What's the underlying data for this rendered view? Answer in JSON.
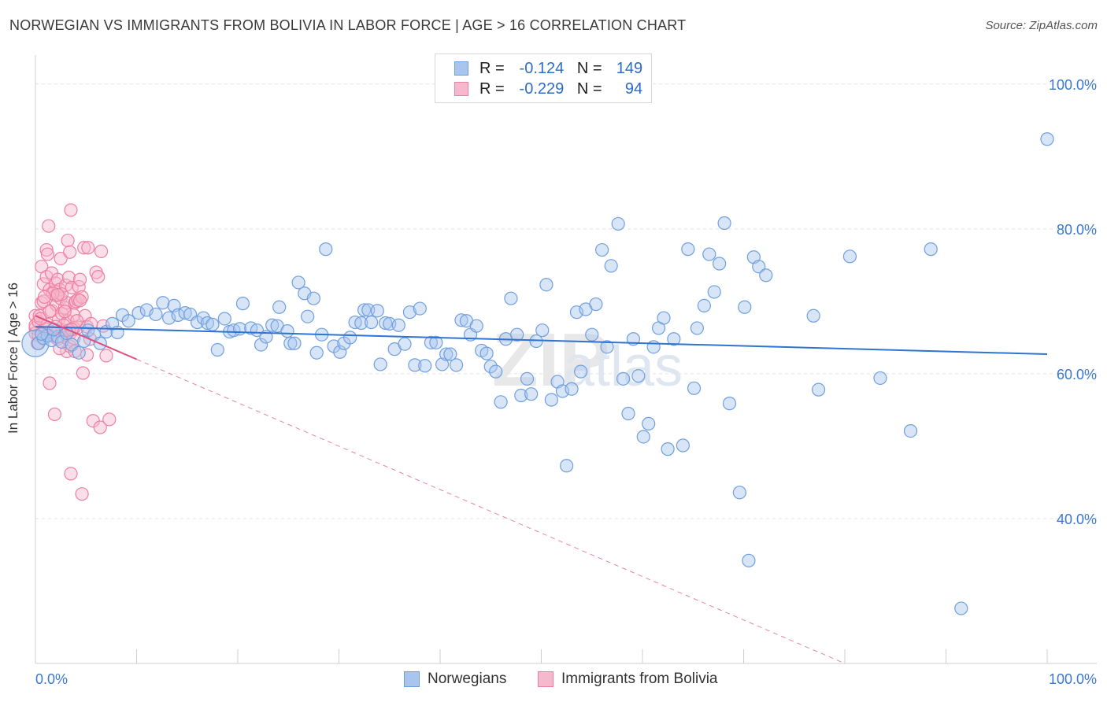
{
  "header": {
    "title": "NORWEGIAN VS IMMIGRANTS FROM BOLIVIA IN LABOR FORCE | AGE > 16 CORRELATION CHART",
    "source": "Source: ZipAtlas.com"
  },
  "legend": {
    "rows": [
      {
        "r_label": "R =",
        "r_value": "-0.124",
        "n_label": "N =",
        "n_value": "149"
      },
      {
        "r_label": "R =",
        "r_value": "-0.229",
        "n_label": "N =",
        "n_value": "94"
      }
    ],
    "bottom": [
      {
        "name": "Norwegians"
      },
      {
        "name": "Immigrants from Bolivia"
      }
    ]
  },
  "colors": {
    "blue_fill": "#a9c5ee",
    "blue_stroke": "#6f9fe0",
    "blue_line": "#2f74d0",
    "pink_fill": "#f6b8cc",
    "pink_stroke": "#ee7fa3",
    "pink_line": "#e04e7e",
    "grid": "#e3e3e3",
    "axis_text": "#3a78d1"
  },
  "chart_data": {
    "type": "scatter",
    "title": "NORWEGIAN VS IMMIGRANTS FROM BOLIVIA IN LABOR FORCE | AGE > 16 CORRELATION CHART",
    "xlabel": "",
    "ylabel": "In Labor Force | Age > 16",
    "xlim": [
      0,
      100
    ],
    "ylim": [
      20,
      104
    ],
    "x_tick_labels": [
      "0.0%",
      "100.0%"
    ],
    "y_ticks": [
      40,
      60,
      80,
      100
    ],
    "y_tick_labels": [
      "40.0%",
      "60.0%",
      "80.0%",
      "100.0%"
    ],
    "grid": true,
    "legend_position": "top-center",
    "series": [
      {
        "name": "Norwegians",
        "R": -0.124,
        "N": 149,
        "trend": {
          "x": [
            0,
            100
          ],
          "y": [
            66.5,
            62.7
          ],
          "style": "solid"
        },
        "points": [
          [
            0.3,
            64.2
          ],
          [
            0.8,
            64.9
          ],
          [
            1.2,
            65.3
          ],
          [
            1.6,
            64.6
          ],
          [
            2.2,
            65.1
          ],
          [
            2.6,
            64.4
          ],
          [
            3.1,
            65.6
          ],
          [
            3.6,
            64.0
          ],
          [
            4.3,
            62.9
          ],
          [
            4.8,
            64.5
          ],
          [
            5.2,
            66.0
          ],
          [
            5.8,
            65.4
          ],
          [
            6.4,
            64.2
          ],
          [
            7.0,
            65.8
          ],
          [
            7.6,
            66.9
          ],
          [
            8.1,
            65.7
          ],
          [
            8.6,
            68.1
          ],
          [
            9.2,
            67.3
          ],
          [
            10.2,
            68.4
          ],
          [
            11.0,
            68.8
          ],
          [
            11.9,
            68.2
          ],
          [
            12.6,
            69.8
          ],
          [
            13.2,
            67.7
          ],
          [
            13.7,
            69.4
          ],
          [
            14.1,
            68.1
          ],
          [
            14.8,
            68.4
          ],
          [
            15.3,
            68.2
          ],
          [
            16.0,
            67.1
          ],
          [
            16.6,
            67.7
          ],
          [
            17.0,
            67.0
          ],
          [
            17.5,
            66.8
          ],
          [
            18.0,
            63.3
          ],
          [
            18.7,
            67.6
          ],
          [
            19.2,
            65.8
          ],
          [
            19.6,
            66.0
          ],
          [
            20.2,
            66.2
          ],
          [
            20.5,
            69.7
          ],
          [
            21.3,
            66.3
          ],
          [
            21.9,
            66.0
          ],
          [
            22.3,
            64.0
          ],
          [
            22.8,
            65.1
          ],
          [
            23.4,
            66.7
          ],
          [
            23.9,
            66.6
          ],
          [
            24.1,
            69.2
          ],
          [
            24.9,
            65.9
          ],
          [
            25.2,
            64.2
          ],
          [
            25.6,
            64.2
          ],
          [
            26.0,
            72.6
          ],
          [
            26.6,
            71.1
          ],
          [
            26.9,
            67.9
          ],
          [
            27.5,
            70.4
          ],
          [
            27.8,
            62.9
          ],
          [
            28.3,
            65.4
          ],
          [
            28.7,
            77.2
          ],
          [
            29.5,
            63.8
          ],
          [
            30.1,
            63.0
          ],
          [
            30.5,
            64.2
          ],
          [
            31.1,
            65.0
          ],
          [
            31.6,
            67.1
          ],
          [
            32.2,
            67.0
          ],
          [
            32.5,
            68.8
          ],
          [
            32.9,
            68.8
          ],
          [
            33.2,
            67.1
          ],
          [
            33.8,
            68.7
          ],
          [
            34.1,
            61.3
          ],
          [
            34.6,
            67.0
          ],
          [
            35.0,
            66.9
          ],
          [
            35.5,
            63.4
          ],
          [
            35.9,
            66.7
          ],
          [
            36.5,
            64.1
          ],
          [
            37.0,
            68.5
          ],
          [
            37.5,
            61.2
          ],
          [
            38.0,
            69.0
          ],
          [
            38.5,
            61.1
          ],
          [
            39.1,
            64.3
          ],
          [
            39.6,
            64.3
          ],
          [
            40.2,
            61.3
          ],
          [
            40.6,
            62.7
          ],
          [
            41.0,
            62.7
          ],
          [
            41.6,
            61.2
          ],
          [
            42.1,
            67.4
          ],
          [
            42.6,
            67.3
          ],
          [
            43.0,
            65.4
          ],
          [
            43.6,
            66.6
          ],
          [
            44.1,
            63.2
          ],
          [
            44.6,
            62.8
          ],
          [
            45.0,
            61.0
          ],
          [
            45.5,
            60.3
          ],
          [
            46.0,
            56.1
          ],
          [
            46.5,
            64.8
          ],
          [
            47.0,
            70.4
          ],
          [
            47.6,
            65.4
          ],
          [
            48.0,
            57.0
          ],
          [
            48.6,
            59.3
          ],
          [
            49.0,
            57.2
          ],
          [
            49.5,
            64.5
          ],
          [
            50.1,
            66.0
          ],
          [
            50.5,
            72.3
          ],
          [
            51.0,
            56.4
          ],
          [
            51.6,
            58.9
          ],
          [
            52.1,
            57.6
          ],
          [
            52.5,
            47.3
          ],
          [
            53.0,
            57.9
          ],
          [
            53.5,
            68.5
          ],
          [
            53.9,
            60.3
          ],
          [
            54.4,
            68.9
          ],
          [
            55.0,
            65.4
          ],
          [
            55.4,
            69.6
          ],
          [
            56.0,
            77.1
          ],
          [
            56.5,
            63.7
          ],
          [
            56.9,
            74.9
          ],
          [
            57.6,
            80.7
          ],
          [
            58.1,
            59.3
          ],
          [
            58.6,
            54.5
          ],
          [
            59.1,
            64.8
          ],
          [
            59.6,
            59.7
          ],
          [
            60.1,
            51.3
          ],
          [
            60.6,
            53.1
          ],
          [
            61.1,
            63.7
          ],
          [
            61.6,
            66.3
          ],
          [
            62.1,
            67.7
          ],
          [
            62.5,
            49.6
          ],
          [
            63.1,
            64.8
          ],
          [
            64.0,
            50.1
          ],
          [
            64.5,
            77.2
          ],
          [
            65.1,
            58.0
          ],
          [
            65.4,
            66.3
          ],
          [
            66.1,
            69.4
          ],
          [
            66.6,
            76.5
          ],
          [
            67.1,
            71.3
          ],
          [
            67.6,
            75.2
          ],
          [
            68.1,
            80.8
          ],
          [
            68.6,
            55.9
          ],
          [
            69.6,
            43.6
          ],
          [
            70.1,
            69.2
          ],
          [
            70.5,
            34.2
          ],
          [
            71.0,
            76.1
          ],
          [
            71.5,
            74.8
          ],
          [
            72.2,
            73.6
          ],
          [
            76.9,
            68.0
          ],
          [
            77.4,
            57.8
          ],
          [
            80.5,
            76.2
          ],
          [
            83.5,
            59.4
          ],
          [
            86.5,
            52.1
          ],
          [
            88.5,
            77.2
          ],
          [
            91.5,
            27.6
          ],
          [
            100,
            92.4
          ],
          [
            0.6,
            65.5
          ],
          [
            1.8,
            66.1
          ]
        ]
      },
      {
        "name": "Immigrants from Bolivia",
        "R": -0.229,
        "N": 94,
        "trend": {
          "x": [
            0,
            10
          ],
          "y": [
            68.0,
            62.0
          ],
          "style": "solid"
        },
        "trend_extension": {
          "x": [
            10,
            100
          ],
          "y": [
            62.0,
            8.0
          ],
          "style": "dashed"
        },
        "points": [
          [
            0.0,
            66.3
          ],
          [
            0.0,
            65.6
          ],
          [
            0.0,
            68.0
          ],
          [
            0.0,
            66.7
          ],
          [
            0.3,
            67.2
          ],
          [
            0.3,
            65.3
          ],
          [
            0.4,
            68.0
          ],
          [
            0.6,
            69.8
          ],
          [
            0.6,
            74.8
          ],
          [
            0.8,
            72.4
          ],
          [
            0.8,
            70.0
          ],
          [
            0.9,
            66.2
          ],
          [
            1.1,
            77.1
          ],
          [
            1.1,
            73.4
          ],
          [
            1.2,
            76.5
          ],
          [
            1.3,
            80.4
          ],
          [
            1.4,
            71.6
          ],
          [
            1.6,
            73.9
          ],
          [
            1.4,
            58.7
          ],
          [
            1.6,
            68.7
          ],
          [
            1.7,
            65.2
          ],
          [
            1.9,
            71.4
          ],
          [
            2.0,
            70.8
          ],
          [
            2.0,
            72.5
          ],
          [
            2.1,
            69.5
          ],
          [
            2.2,
            73.0
          ],
          [
            2.3,
            67.5
          ],
          [
            2.2,
            64.8
          ],
          [
            2.4,
            71.6
          ],
          [
            2.5,
            70.4
          ],
          [
            2.5,
            75.9
          ],
          [
            2.6,
            68.3
          ],
          [
            2.7,
            66.0
          ],
          [
            2.9,
            69.1
          ],
          [
            3.0,
            72.2
          ],
          [
            3.0,
            65.4
          ],
          [
            3.1,
            63.1
          ],
          [
            3.1,
            69.8
          ],
          [
            3.2,
            67.3
          ],
          [
            3.2,
            78.4
          ],
          [
            3.3,
            73.3
          ],
          [
            3.4,
            63.8
          ],
          [
            3.4,
            76.8
          ],
          [
            3.5,
            65.7
          ],
          [
            3.5,
            82.6
          ],
          [
            3.5,
            46.2
          ],
          [
            3.6,
            71.9
          ],
          [
            3.8,
            68.1
          ],
          [
            3.8,
            64.9
          ],
          [
            3.9,
            69.8
          ],
          [
            3.9,
            63.1
          ],
          [
            4.0,
            70.0
          ],
          [
            4.2,
            66.4
          ],
          [
            4.2,
            70.2
          ],
          [
            4.3,
            72.0
          ],
          [
            4.4,
            73.0
          ],
          [
            4.6,
            70.6
          ],
          [
            4.6,
            43.4
          ],
          [
            4.7,
            60.1
          ],
          [
            4.8,
            77.4
          ],
          [
            4.9,
            68.0
          ],
          [
            5.1,
            66.5
          ],
          [
            5.1,
            62.6
          ],
          [
            5.2,
            77.4
          ],
          [
            5.4,
            64.8
          ],
          [
            5.7,
            53.5
          ],
          [
            6.0,
            74.0
          ],
          [
            6.2,
            73.4
          ],
          [
            6.4,
            52.6
          ],
          [
            6.5,
            76.9
          ],
          [
            6.7,
            66.6
          ],
          [
            7.0,
            62.5
          ],
          [
            7.3,
            53.7
          ],
          [
            1.0,
            66.2
          ],
          [
            1.5,
            65.8
          ],
          [
            2.8,
            66.7
          ],
          [
            0.2,
            64.2
          ],
          [
            1.9,
            54.4
          ],
          [
            2.4,
            63.5
          ],
          [
            3.8,
            66.3
          ],
          [
            1.2,
            66.8
          ],
          [
            2.0,
            66.5
          ],
          [
            2.6,
            71.0
          ],
          [
            1.7,
            71.1
          ],
          [
            0.9,
            70.6
          ],
          [
            2.2,
            70.9
          ],
          [
            4.1,
            67.3
          ],
          [
            0.5,
            67.6
          ],
          [
            3.3,
            66.0
          ],
          [
            5.5,
            66.9
          ],
          [
            2.9,
            68.6
          ],
          [
            1.4,
            68.6
          ],
          [
            3.6,
            66.1
          ],
          [
            4.4,
            70.1
          ]
        ]
      }
    ]
  }
}
